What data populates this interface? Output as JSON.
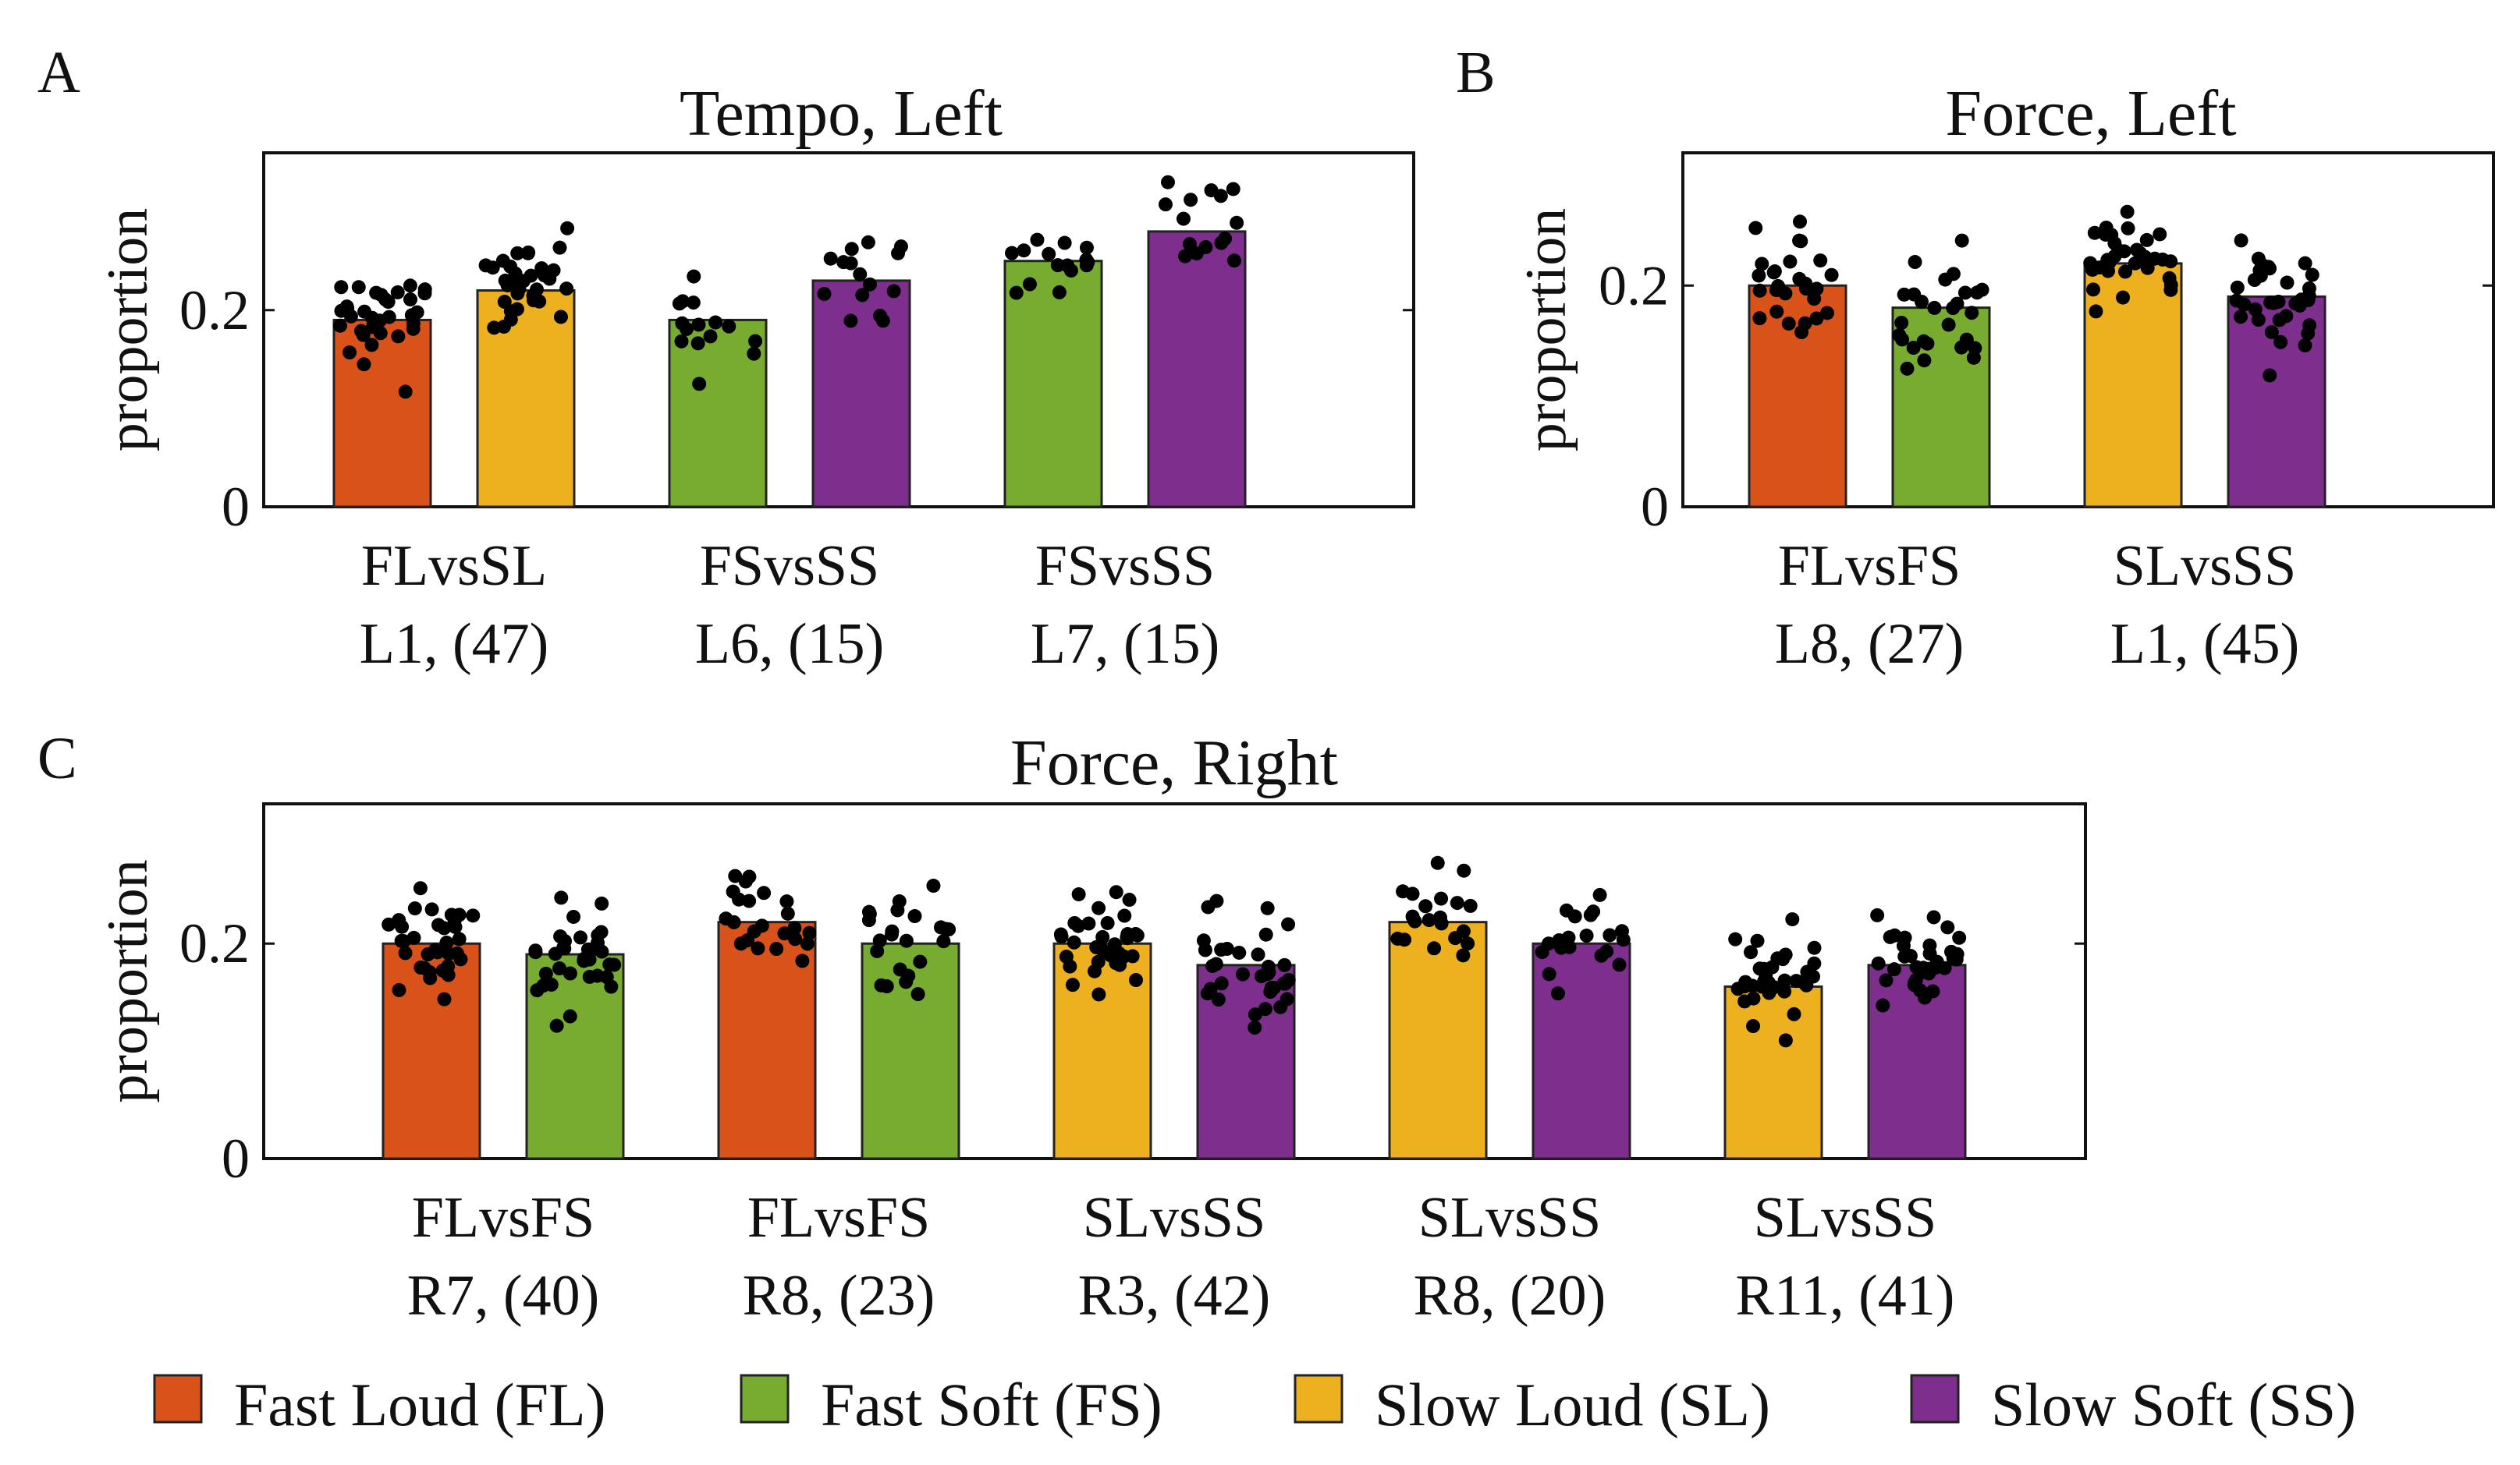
{
  "chart_data": [
    {
      "panel": "A",
      "title": "Tempo, Left",
      "type": "bar",
      "ylabel": "proportion",
      "ylim": [
        0,
        0.36
      ],
      "yticks": [
        0,
        0.2
      ],
      "ytick_labels": [
        "0",
        "0.2"
      ],
      "groups": [
        {
          "comparison": "FLvsSL",
          "label": "L1, (47)",
          "n": 47,
          "bars": [
            {
              "condition": "FL",
              "value": 0.19
            },
            {
              "condition": "SL",
              "value": 0.22
            }
          ]
        },
        {
          "comparison": "FSvsSS",
          "label": "L6, (15)",
          "n": 15,
          "bars": [
            {
              "condition": "FS",
              "value": 0.19
            },
            {
              "condition": "SS",
              "value": 0.23
            }
          ]
        },
        {
          "comparison": "FSvsSS",
          "label": "L7, (15)",
          "n": 15,
          "bars": [
            {
              "condition": "FS",
              "value": 0.25
            },
            {
              "condition": "SS",
              "value": 0.28
            }
          ]
        }
      ]
    },
    {
      "panel": "B",
      "title": "Force, Left",
      "type": "bar",
      "ylabel": "proportion",
      "ylim": [
        0,
        0.32
      ],
      "yticks": [
        0,
        0.2
      ],
      "ytick_labels": [
        "0",
        "0.2"
      ],
      "groups": [
        {
          "comparison": "FLvsFS",
          "label": "L8, (27)",
          "n": 27,
          "bars": [
            {
              "condition": "FL",
              "value": 0.2
            },
            {
              "condition": "FS",
              "value": 0.18
            }
          ]
        },
        {
          "comparison": "SLvsSS",
          "label": "L1, (45)",
          "n": 45,
          "bars": [
            {
              "condition": "SL",
              "value": 0.22
            },
            {
              "condition": "SS",
              "value": 0.19
            }
          ]
        }
      ]
    },
    {
      "panel": "C",
      "title": "Force, Right",
      "type": "bar",
      "ylabel": "proportion",
      "ylim": [
        0,
        0.33
      ],
      "yticks": [
        0,
        0.2
      ],
      "ytick_labels": [
        "0",
        "0.2"
      ],
      "groups": [
        {
          "comparison": "FLvsFS",
          "label": "R7, (40)",
          "n": 40,
          "bars": [
            {
              "condition": "FL",
              "value": 0.2
            },
            {
              "condition": "FS",
              "value": 0.19
            }
          ]
        },
        {
          "comparison": "FLvsFS",
          "label": "R8, (23)",
          "n": 23,
          "bars": [
            {
              "condition": "FL",
              "value": 0.22
            },
            {
              "condition": "FS",
              "value": 0.2
            }
          ]
        },
        {
          "comparison": "SLvsSS",
          "label": "R3, (42)",
          "n": 42,
          "bars": [
            {
              "condition": "SL",
              "value": 0.2
            },
            {
              "condition": "SS",
              "value": 0.18
            }
          ]
        },
        {
          "comparison": "SLvsSS",
          "label": "R8, (20)",
          "n": 20,
          "bars": [
            {
              "condition": "SL",
              "value": 0.22
            },
            {
              "condition": "SS",
              "value": 0.2
            }
          ]
        },
        {
          "comparison": "SLvsSS",
          "label": "R11, (41)",
          "n": 41,
          "bars": [
            {
              "condition": "SL",
              "value": 0.16
            },
            {
              "condition": "SS",
              "value": 0.18
            }
          ]
        }
      ]
    }
  ],
  "legend": [
    {
      "key": "FL",
      "label": "Fast Loud (FL)",
      "color": "#d95219"
    },
    {
      "key": "FS",
      "label": "Fast Soft (FS)",
      "color": "#77ac30"
    },
    {
      "key": "SL",
      "label": "Slow Loud (SL)",
      "color": "#edb120"
    },
    {
      "key": "SS",
      "label": "Slow Soft (SS)",
      "color": "#7e2f8e"
    }
  ]
}
